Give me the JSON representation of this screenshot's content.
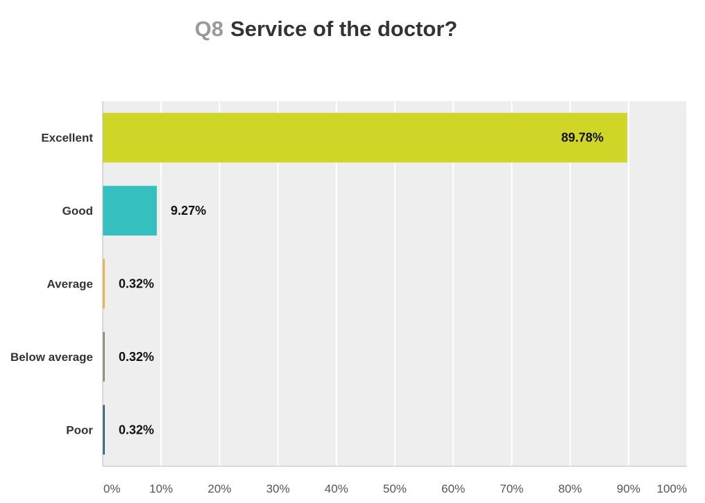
{
  "question_number": "Q8",
  "question_text": "Service of the doctor?",
  "chart_data": {
    "type": "bar",
    "orientation": "horizontal",
    "categories": [
      "Excellent",
      "Good",
      "Average",
      "Below average",
      "Poor"
    ],
    "values": [
      89.78,
      9.27,
      0.32,
      0.32,
      0.32
    ],
    "value_labels": [
      "89.78%",
      "9.27%",
      "0.32%",
      "0.32%",
      "0.32%"
    ],
    "colors": [
      "#cfd628",
      "#35bfbf",
      "#f3b43c",
      "#8e8e76",
      "#2e5f73"
    ],
    "xlim": [
      0,
      100
    ],
    "xticks": [
      "0%",
      "10%",
      "20%",
      "30%",
      "40%",
      "50%",
      "60%",
      "70%",
      "80%",
      "90%",
      "100%"
    ],
    "grid": true,
    "legend": "none"
  }
}
